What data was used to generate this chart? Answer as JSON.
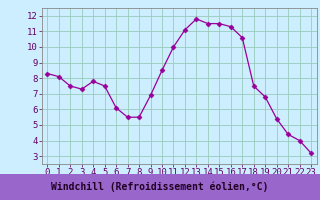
{
  "x": [
    0,
    1,
    2,
    3,
    4,
    5,
    6,
    7,
    8,
    9,
    10,
    11,
    12,
    13,
    14,
    15,
    16,
    17,
    18,
    19,
    20,
    21,
    22,
    23
  ],
  "y": [
    8.3,
    8.1,
    7.5,
    7.3,
    7.8,
    7.5,
    6.1,
    5.5,
    5.5,
    6.9,
    8.5,
    10.0,
    11.1,
    11.8,
    11.5,
    11.5,
    11.3,
    10.6,
    7.5,
    6.8,
    5.4,
    4.4,
    4.0,
    3.2
  ],
  "line_color": "#990099",
  "marker": "D",
  "marker_size": 2.5,
  "bg_color": "#cceeff",
  "plot_bg": "#cceeff",
  "grid_color": "#99ccbb",
  "xlabel": "Windchill (Refroidissement éolien,°C)",
  "xlabel_color": "#220022",
  "xlabel_bg": "#9966cc",
  "xlim": [
    -0.5,
    23.5
  ],
  "ylim": [
    2.5,
    12.5
  ],
  "yticks": [
    3,
    4,
    5,
    6,
    7,
    8,
    9,
    10,
    11,
    12
  ],
  "xticks": [
    0,
    1,
    2,
    3,
    4,
    5,
    6,
    7,
    8,
    9,
    10,
    11,
    12,
    13,
    14,
    15,
    16,
    17,
    18,
    19,
    20,
    21,
    22,
    23
  ],
  "tick_label_color": "#660066",
  "tick_label_fontsize": 6.5,
  "axis_line_color": "#660066",
  "spine_color": "#888888"
}
